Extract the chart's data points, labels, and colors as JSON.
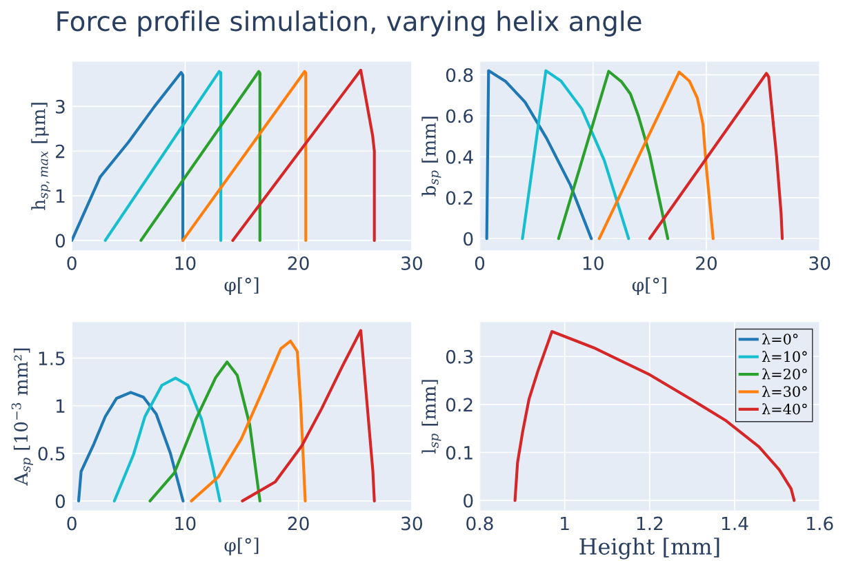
{
  "chart_data": [
    {
      "type": "line",
      "title": "Force profile simulation, varying helix angle",
      "xlabel": "φ[°]",
      "ylabel": "h$_{sp,max}$ [μm]",
      "xlim": [
        0,
        30
      ],
      "ylim": [
        -0.22,
        4.0
      ],
      "xticks": [
        0,
        10,
        20,
        30
      ],
      "yticks": [
        0,
        1,
        2,
        3
      ],
      "grid": true,
      "legend": false,
      "series": [
        {
          "color": "#1f77b4",
          "x": [
            0,
            2.5,
            5,
            7.3,
            9,
            9.65,
            9.8,
            9.8
          ],
          "values": [
            0,
            1.42,
            2.2,
            3.0,
            3.55,
            3.76,
            3.7,
            0
          ]
        },
        {
          "color": "#17becf",
          "x": [
            2.95,
            13.0,
            13.15,
            13.15
          ],
          "values": [
            0,
            3.78,
            3.75,
            0
          ]
        },
        {
          "color": "#2ca02c",
          "x": [
            6.1,
            16.5,
            16.6,
            16.6
          ],
          "values": [
            0,
            3.78,
            3.75,
            0
          ]
        },
        {
          "color": "#ff7f0e",
          "x": [
            9.8,
            20.55,
            20.65,
            20.65
          ],
          "values": [
            0,
            3.78,
            3.75,
            0
          ]
        },
        {
          "color": "#d62728",
          "x": [
            14.2,
            25.5,
            26.55,
            26.7,
            26.7
          ],
          "values": [
            0,
            3.81,
            2.34,
            2.0,
            0
          ]
        }
      ]
    },
    {
      "type": "line",
      "xlabel": "φ[°]",
      "ylabel": "b$_{sp}$ [mm]",
      "xlim": [
        0,
        30
      ],
      "ylim": [
        -0.057,
        0.864
      ],
      "xticks": [
        0,
        10,
        20,
        30
      ],
      "yticks": [
        0,
        0.2,
        0.4,
        0.6,
        0.8
      ],
      "grid": true,
      "legend": false,
      "series": [
        {
          "color": "#1f77b4",
          "x": [
            0.62,
            0.78,
            2.3,
            4.0,
            5.9,
            8.0,
            9.85
          ],
          "values": [
            0,
            0.82,
            0.767,
            0.667,
            0.49,
            0.262,
            0
          ]
        },
        {
          "color": "#17becf",
          "x": [
            3.77,
            5.84,
            7.17,
            9.0,
            11.0,
            13.14
          ],
          "values": [
            0,
            0.82,
            0.77,
            0.634,
            0.381,
            0
          ]
        },
        {
          "color": "#2ca02c",
          "x": [
            6.96,
            11.38,
            12.5,
            13.3,
            14.0,
            15.0,
            16.6
          ],
          "values": [
            0,
            0.817,
            0.767,
            0.707,
            0.6,
            0.41,
            0
          ]
        },
        {
          "color": "#ff7f0e",
          "x": [
            10.55,
            17.6,
            18.5,
            19.2,
            19.7,
            20.0,
            20.6
          ],
          "values": [
            0,
            0.813,
            0.77,
            0.687,
            0.56,
            0.348,
            0
          ]
        },
        {
          "color": "#d62728",
          "x": [
            15.0,
            25.3,
            25.5,
            26.2,
            26.6,
            26.7
          ],
          "values": [
            0,
            0.807,
            0.79,
            0.4,
            0.122,
            0
          ]
        }
      ]
    },
    {
      "type": "line",
      "xlabel": "φ[°]",
      "ylabel": "A$_{sp}$ [10$^{−3}$ mm²]",
      "xlim": [
        0,
        30
      ],
      "ylim": [
        -0.1,
        1.88
      ],
      "xticks": [
        0,
        10,
        20,
        30
      ],
      "yticks": [
        0,
        0.5,
        1,
        1.5
      ],
      "grid": true,
      "legend": false,
      "series": [
        {
          "color": "#1f77b4",
          "x": [
            0.6,
            0.82,
            1.95,
            2.95,
            3.95,
            5.2,
            6.32,
            7.45,
            8.7,
            9.82
          ],
          "values": [
            0,
            0.31,
            0.6,
            0.886,
            1.078,
            1.14,
            1.09,
            0.913,
            0.5,
            0
          ]
        },
        {
          "color": "#17becf",
          "x": [
            3.75,
            5.45,
            6.45,
            7.95,
            9.15,
            10.25,
            11.45,
            12.45,
            13.07
          ],
          "values": [
            0,
            0.49,
            0.886,
            1.215,
            1.29,
            1.215,
            0.858,
            0.35,
            0
          ]
        },
        {
          "color": "#2ca02c",
          "x": [
            6.9,
            9.05,
            10.95,
            12.7,
            13.7,
            14.6,
            15.7,
            16.6
          ],
          "values": [
            0,
            0.296,
            0.858,
            1.297,
            1.46,
            1.32,
            0.8,
            0
          ]
        },
        {
          "color": "#ff7f0e",
          "x": [
            10.55,
            12.95,
            14.95,
            16.95,
            18.45,
            19.3,
            19.9,
            20.2,
            20.6
          ],
          "values": [
            0,
            0.255,
            0.65,
            1.187,
            1.6,
            1.68,
            1.57,
            1.02,
            0
          ]
        },
        {
          "color": "#d62728",
          "x": [
            15.05,
            17.95,
            20.3,
            22.05,
            23.9,
            25.5,
            26.57,
            26.7
          ],
          "values": [
            0,
            0.2,
            0.58,
            0.97,
            1.42,
            1.79,
            0.31,
            0
          ]
        }
      ]
    },
    {
      "type": "line",
      "xlabel": "Height [mm]",
      "ylabel": "l$_{sp}$ [mm]",
      "xlim": [
        0.8,
        1.6
      ],
      "ylim": [
        -0.021,
        0.372
      ],
      "xticks": [
        0.8,
        1,
        1.2,
        1.4,
        1.6
      ],
      "yticks": [
        0,
        0.1,
        0.2,
        0.3
      ],
      "grid": true,
      "legend": "top right",
      "x": [
        0.883,
        0.889,
        0.901,
        0.916,
        0.937,
        0.97,
        1.069,
        1.2,
        1.297,
        1.38,
        1.457,
        1.505,
        1.533,
        1.54
      ],
      "series": [
        {
          "name": "λ=0°",
          "color": "#1f77b4",
          "values": [
            null,
            null,
            null,
            null,
            null,
            null,
            null,
            null,
            null,
            null,
            null,
            null,
            null,
            null
          ]
        },
        {
          "name": "λ=10°",
          "color": "#17becf",
          "values": [
            null,
            null,
            null,
            null,
            null,
            null,
            null,
            null,
            null,
            null,
            null,
            null,
            null,
            null
          ]
        },
        {
          "name": "λ=20°",
          "color": "#2ca02c",
          "values": [
            null,
            null,
            null,
            null,
            null,
            null,
            null,
            null,
            null,
            null,
            null,
            null,
            null,
            null
          ]
        },
        {
          "name": "λ=30°",
          "color": "#ff7f0e",
          "values": [
            null,
            null,
            null,
            null,
            null,
            null,
            null,
            null,
            null,
            null,
            null,
            null,
            null,
            null
          ]
        },
        {
          "name": "λ=40°",
          "color": "#d62728",
          "values": [
            0,
            0.079,
            0.143,
            0.211,
            0.27,
            0.352,
            0.318,
            0.262,
            0.211,
            0.166,
            0.112,
            0.064,
            0.024,
            0
          ]
        }
      ]
    }
  ]
}
